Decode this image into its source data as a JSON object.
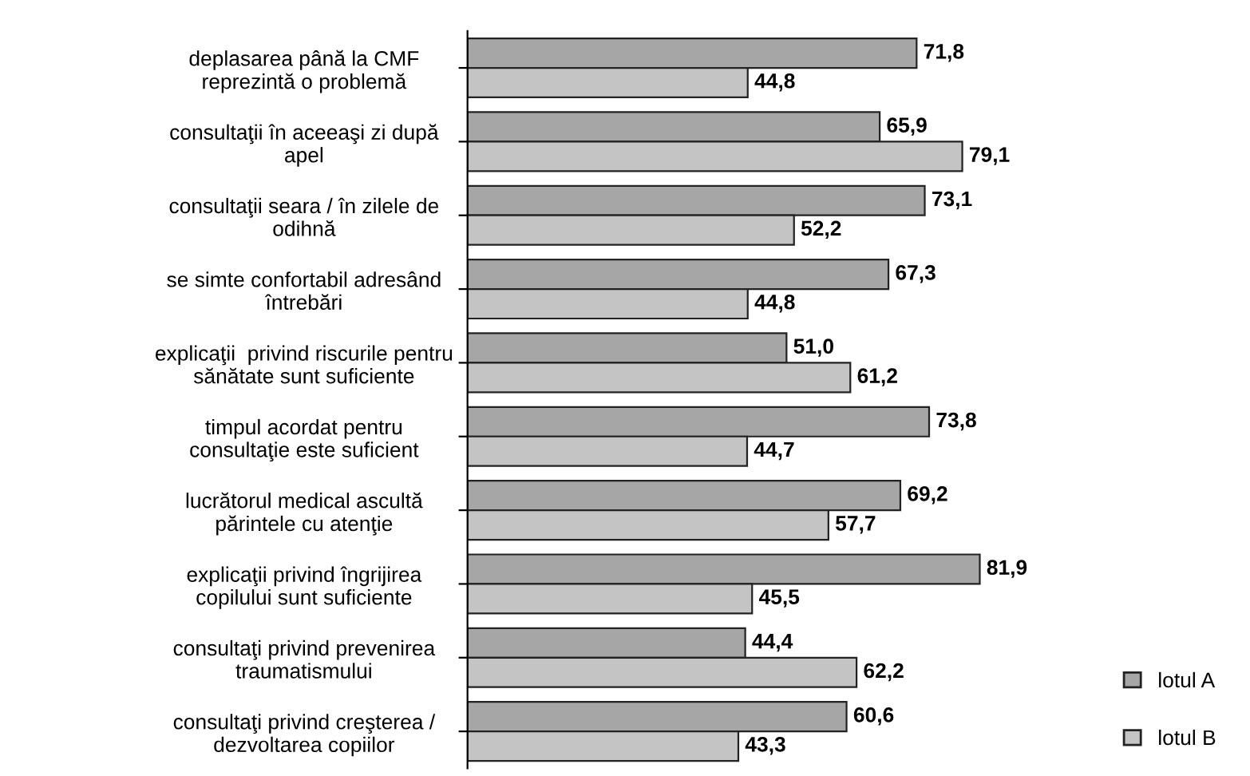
{
  "chart_data": {
    "type": "bar",
    "orientation": "horizontal",
    "legend": "bottom right",
    "data_labels": true,
    "categories": [
      "deplasarea până la CMF\nreprezintă o problemă",
      "consultaţii în aceeaşi zi după\napel",
      "consultaţii seara / în zilele de\nodihnă",
      "se simte confortabil adresând\nîntrebări",
      "explicaţii  privind riscurile pentru\nsănătate sunt suficiente",
      "timpul acordat pentru\nconsultaţie este suficient",
      "lucrătorul medical ascultă\npărintele cu atenţie",
      "explicaţii privind îngrijirea\ncopilului sunt suficiente",
      "consultaţi privind prevenirea\ntraumatismului",
      "consultaţi privind creşterea /\ndezvoltarea copiilor"
    ],
    "series": [
      {
        "name": "lotul A",
        "color": "#a6a6a6",
        "values": [
          71.8,
          65.9,
          73.1,
          67.3,
          51.0,
          73.8,
          69.2,
          81.9,
          44.4,
          60.6
        ],
        "value_labels": [
          "71,8",
          "65,9",
          "73,1",
          "67,3",
          "51,0",
          "73,8",
          "69,2",
          "81,9",
          "44,4",
          "60,6"
        ]
      },
      {
        "name": "lotul B",
        "color": "#c4c4c4",
        "values": [
          44.8,
          79.1,
          52.2,
          44.8,
          61.2,
          44.7,
          57.7,
          45.5,
          62.2,
          43.3
        ],
        "value_labels": [
          "44,8",
          "79,1",
          "52,2",
          "44,8",
          "61,2",
          "44,7",
          "57,7",
          "45,5",
          "62,2",
          "43,3"
        ]
      }
    ]
  }
}
